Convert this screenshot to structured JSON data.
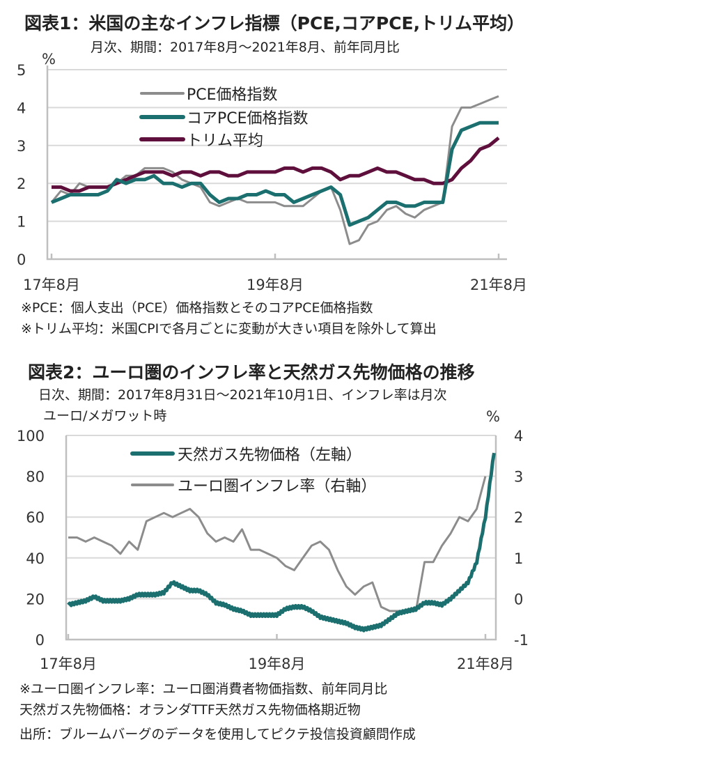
{
  "colors": {
    "pce": "#8c8c8c",
    "core": "#1b6f6f",
    "trim": "#5e0f3c",
    "gas": "#1b6f6f",
    "infl": "#8c8c8c"
  },
  "chart_data": [
    {
      "type": "line",
      "title": "図表1：米国の主なインフレ指標（PCE,コアPCE,トリム平均）",
      "subtitle": "月次、期間：2017年8月～2021年8月、前年同月比",
      "ylabel": "%",
      "ylim": [
        0,
        5
      ],
      "yticks": [
        "0",
        "1",
        "2",
        "3",
        "4",
        "5"
      ],
      "xtick_labels": [
        {
          "label": "17年8月",
          "month_index": 0
        },
        {
          "label": "19年8月",
          "month_index": 24
        },
        {
          "label": "21年8月",
          "month_index": 48
        }
      ],
      "x_unit": "months since 2017-08",
      "grid": true,
      "legend_position": "top-left",
      "series": [
        {
          "name": "PCE価格指数",
          "values": [
            1.5,
            1.8,
            1.7,
            2.0,
            1.9,
            1.9,
            1.9,
            2.0,
            2.2,
            2.2,
            2.4,
            2.4,
            2.4,
            2.3,
            2.1,
            2.0,
            1.9,
            1.5,
            1.4,
            1.5,
            1.6,
            1.5,
            1.5,
            1.5,
            1.5,
            1.4,
            1.4,
            1.4,
            1.6,
            1.8,
            1.9,
            1.3,
            0.4,
            0.5,
            0.9,
            1.0,
            1.3,
            1.4,
            1.2,
            1.1,
            1.3,
            1.4,
            1.5,
            3.5,
            4.0,
            4.0,
            4.1,
            4.2,
            4.3
          ]
        },
        {
          "name": "コアPCE価格指数",
          "values": [
            1.5,
            1.6,
            1.7,
            1.7,
            1.7,
            1.7,
            1.8,
            2.1,
            2.0,
            2.1,
            2.1,
            2.2,
            2.0,
            2.0,
            1.9,
            2.0,
            2.0,
            1.7,
            1.5,
            1.6,
            1.6,
            1.7,
            1.7,
            1.8,
            1.7,
            1.7,
            1.5,
            1.6,
            1.7,
            1.8,
            1.9,
            1.7,
            0.9,
            1.0,
            1.1,
            1.3,
            1.5,
            1.5,
            1.4,
            1.4,
            1.5,
            1.5,
            1.5,
            2.9,
            3.4,
            3.5,
            3.6,
            3.6,
            3.6
          ]
        },
        {
          "name": "トリム平均",
          "values": [
            1.9,
            1.9,
            1.8,
            1.8,
            1.9,
            1.9,
            1.9,
            2.0,
            2.1,
            2.2,
            2.3,
            2.3,
            2.3,
            2.2,
            2.3,
            2.3,
            2.2,
            2.3,
            2.3,
            2.2,
            2.2,
            2.3,
            2.3,
            2.3,
            2.3,
            2.4,
            2.4,
            2.3,
            2.4,
            2.4,
            2.3,
            2.1,
            2.2,
            2.2,
            2.3,
            2.4,
            2.3,
            2.3,
            2.2,
            2.1,
            2.1,
            2.0,
            2.0,
            2.1,
            2.4,
            2.6,
            2.9,
            3.0,
            3.2
          ]
        }
      ],
      "notes": [
        "※PCE：個人支出（PCE）価格指数とそのコアPCE価格指数",
        "※トリム平均：米国CPIで各月ごとに変動が大きい項目を除外して算出"
      ]
    },
    {
      "type": "line",
      "title": "図表2：ユーロ圏のインフレ率と天然ガス先物価格の推移",
      "subtitle": "日次、期間：2017年8月31日～2021年10月1日、インフレ率は月次",
      "ylabel_left": "ユーロ/メガワット時",
      "ylabel_right": "%",
      "ylim_left": [
        0,
        100
      ],
      "ylim_right": [
        -1,
        4
      ],
      "yticks_left": [
        "0",
        "20",
        "40",
        "60",
        "80",
        "100"
      ],
      "yticks_right": [
        "-1",
        "0",
        "1",
        "2",
        "3",
        "4"
      ],
      "xtick_labels": [
        {
          "label": "17年8月",
          "month_index": 0
        },
        {
          "label": "19年8月",
          "month_index": 24
        },
        {
          "label": "21年8月",
          "month_index": 48
        }
      ],
      "x_unit": "months since 2017-08",
      "grid": true,
      "legend_position": "top-left",
      "series": [
        {
          "name": "天然ガス先物価格（左軸）",
          "axis": "left",
          "values": [
            17,
            18,
            19,
            21,
            19,
            19,
            19,
            20,
            22,
            22,
            22,
            23,
            28,
            26,
            24,
            24,
            22,
            18,
            17,
            15,
            14,
            12,
            12,
            12,
            12,
            15,
            16,
            16,
            14,
            11,
            10,
            9,
            8,
            6,
            5,
            6,
            7,
            10,
            13,
            14,
            15,
            18,
            18,
            17,
            20,
            24,
            28,
            38,
            60,
            92
          ]
        },
        {
          "name": "ユーロ圏インフレ率（右軸）",
          "axis": "right",
          "values": [
            1.5,
            1.5,
            1.4,
            1.5,
            1.4,
            1.3,
            1.1,
            1.4,
            1.2,
            1.9,
            2.0,
            2.1,
            2.0,
            2.1,
            2.2,
            2.0,
            1.6,
            1.4,
            1.5,
            1.4,
            1.7,
            1.2,
            1.2,
            1.1,
            1.0,
            0.8,
            0.7,
            1.0,
            1.3,
            1.4,
            1.2,
            0.7,
            0.3,
            0.1,
            0.3,
            0.4,
            -0.2,
            -0.3,
            -0.3,
            -0.3,
            -0.3,
            0.9,
            0.9,
            1.3,
            1.6,
            2.0,
            1.9,
            2.2,
            3.0
          ]
        }
      ],
      "notes": [
        "※ユーロ圏インフレ率：ユーロ圏消費者物価指数、前年同月比",
        "天然ガス先物価格：オランダTTF天然ガス先物価格期近物",
        "出所：ブルームバーグのデータを使用してピクテ投信投資顧問作成"
      ]
    }
  ]
}
